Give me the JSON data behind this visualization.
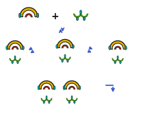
{
  "bg_color": "#ffffff",
  "yellow": "#e8b400",
  "yellow_dark": "#c09000",
  "red": "#dd2200",
  "teal": "#009999",
  "teal_dark": "#007777",
  "green": "#55aa22",
  "green_dark": "#336611",
  "black": "#111111",
  "blue": "#3355cc",
  "figsize": [
    2.06,
    1.89
  ],
  "dpi": 100
}
